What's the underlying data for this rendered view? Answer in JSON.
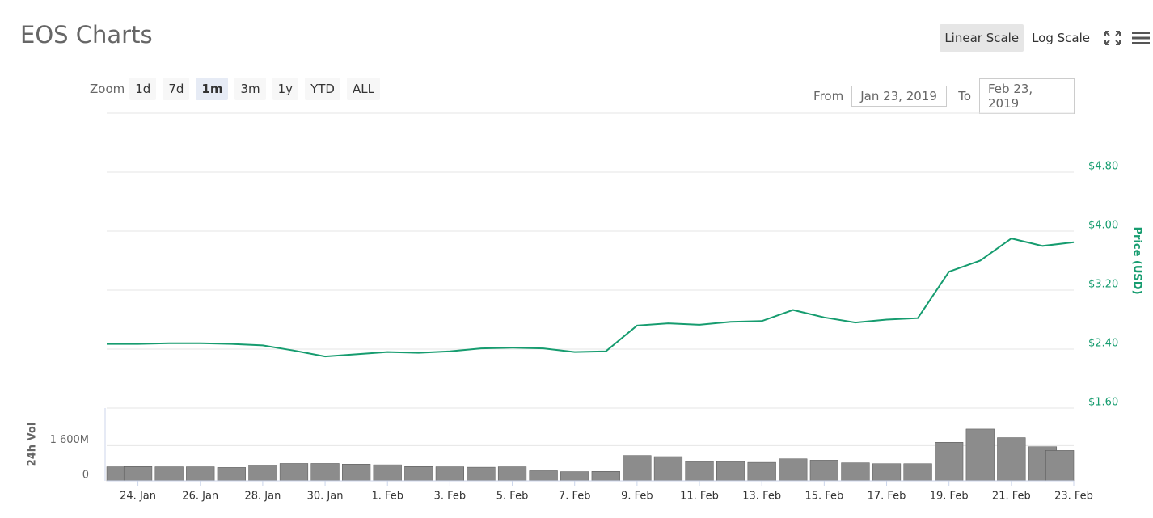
{
  "header": {
    "title": "EOS Charts",
    "scale_buttons": [
      "Linear Scale",
      "Log Scale"
    ],
    "active_scale": "Linear Scale"
  },
  "zoom": {
    "label": "Zoom",
    "options": [
      "1d",
      "7d",
      "1m",
      "3m",
      "1y",
      "YTD",
      "ALL"
    ],
    "active": "1m"
  },
  "range": {
    "from_label": "From",
    "from": "Jan 23, 2019",
    "to_label": "To",
    "to": "Feb 23, 2019"
  },
  "chart_data": [
    {
      "type": "line",
      "y_label": "Price (USD)",
      "color": "#169c6f",
      "x": [
        "2019-01-23",
        "2019-01-24",
        "2019-01-25",
        "2019-01-26",
        "2019-01-27",
        "2019-01-28",
        "2019-01-29",
        "2019-01-30",
        "2019-01-31",
        "2019-02-01",
        "2019-02-02",
        "2019-02-03",
        "2019-02-04",
        "2019-02-05",
        "2019-02-06",
        "2019-02-07",
        "2019-02-08",
        "2019-02-09",
        "2019-02-10",
        "2019-02-11",
        "2019-02-12",
        "2019-02-13",
        "2019-02-14",
        "2019-02-15",
        "2019-02-16",
        "2019-02-17",
        "2019-02-18",
        "2019-02-19",
        "2019-02-20",
        "2019-02-21",
        "2019-02-22",
        "2019-02-23"
      ],
      "values": [
        2.47,
        2.47,
        2.48,
        2.48,
        2.47,
        2.45,
        2.38,
        2.3,
        2.33,
        2.36,
        2.35,
        2.37,
        2.41,
        2.42,
        2.41,
        2.36,
        2.37,
        2.72,
        2.75,
        2.73,
        2.77,
        2.78,
        2.93,
        2.83,
        2.76,
        2.8,
        2.82,
        3.45,
        3.6,
        3.9,
        3.8,
        3.85
      ],
      "xlim": [
        "2019-01-23",
        "2019-02-23"
      ],
      "ylim": [
        1.6,
        5.6
      ],
      "yticks": [
        {
          "value": 1.6,
          "label": "$1.60"
        },
        {
          "value": 2.4,
          "label": "$2.40"
        },
        {
          "value": 3.2,
          "label": "$3.20"
        },
        {
          "value": 4.0,
          "label": "$4.00"
        },
        {
          "value": 4.8,
          "label": "$4.80"
        }
      ],
      "grid": true
    },
    {
      "type": "bar",
      "y_label": "24h Vol",
      "color": "#8c8c8c",
      "x": [
        "2019-01-23",
        "2019-01-24",
        "2019-01-25",
        "2019-01-26",
        "2019-01-27",
        "2019-01-28",
        "2019-01-29",
        "2019-01-30",
        "2019-01-31",
        "2019-02-01",
        "2019-02-02",
        "2019-02-03",
        "2019-02-04",
        "2019-02-05",
        "2019-02-06",
        "2019-02-07",
        "2019-02-08",
        "2019-02-09",
        "2019-02-10",
        "2019-02-11",
        "2019-02-12",
        "2019-02-13",
        "2019-02-14",
        "2019-02-15",
        "2019-02-16",
        "2019-02-17",
        "2019-02-18",
        "2019-02-19",
        "2019-02-20",
        "2019-02-21",
        "2019-02-22",
        "2019-02-23"
      ],
      "values": [
        640000000,
        650000000,
        640000000,
        640000000,
        610000000,
        720000000,
        790000000,
        790000000,
        760000000,
        730000000,
        650000000,
        640000000,
        620000000,
        640000000,
        460000000,
        420000000,
        430000000,
        1150000000,
        1100000000,
        880000000,
        880000000,
        840000000,
        1000000000,
        940000000,
        820000000,
        780000000,
        780000000,
        1750000000,
        2350000000,
        1960000000,
        1550000000,
        1380000000
      ],
      "xlim": [
        "2019-01-23",
        "2019-02-23"
      ],
      "ylim": [
        0,
        3300000000
      ],
      "yticks": [
        0,
        {
          "value": 1600000000,
          "label": "1 600M"
        }
      ],
      "xticks": [
        {
          "value": "2019-01-24",
          "label": "24. Jan"
        },
        {
          "value": "2019-01-26",
          "label": "26. Jan"
        },
        {
          "value": "2019-01-28",
          "label": "28. Jan"
        },
        {
          "value": "2019-01-30",
          "label": "30. Jan"
        },
        {
          "value": "2019-02-01",
          "label": "1. Feb"
        },
        {
          "value": "2019-02-03",
          "label": "3. Feb"
        },
        {
          "value": "2019-02-05",
          "label": "5. Feb"
        },
        {
          "value": "2019-02-07",
          "label": "7. Feb"
        },
        {
          "value": "2019-02-09",
          "label": "9. Feb"
        },
        {
          "value": "2019-02-11",
          "label": "11. Feb"
        },
        {
          "value": "2019-02-13",
          "label": "13. Feb"
        },
        {
          "value": "2019-02-15",
          "label": "15. Feb"
        },
        {
          "value": "2019-02-17",
          "label": "17. Feb"
        },
        {
          "value": "2019-02-19",
          "label": "19. Feb"
        },
        {
          "value": "2019-02-21",
          "label": "21. Feb"
        },
        {
          "value": "2019-02-23",
          "label": "23. Feb"
        }
      ],
      "grid": true
    }
  ]
}
